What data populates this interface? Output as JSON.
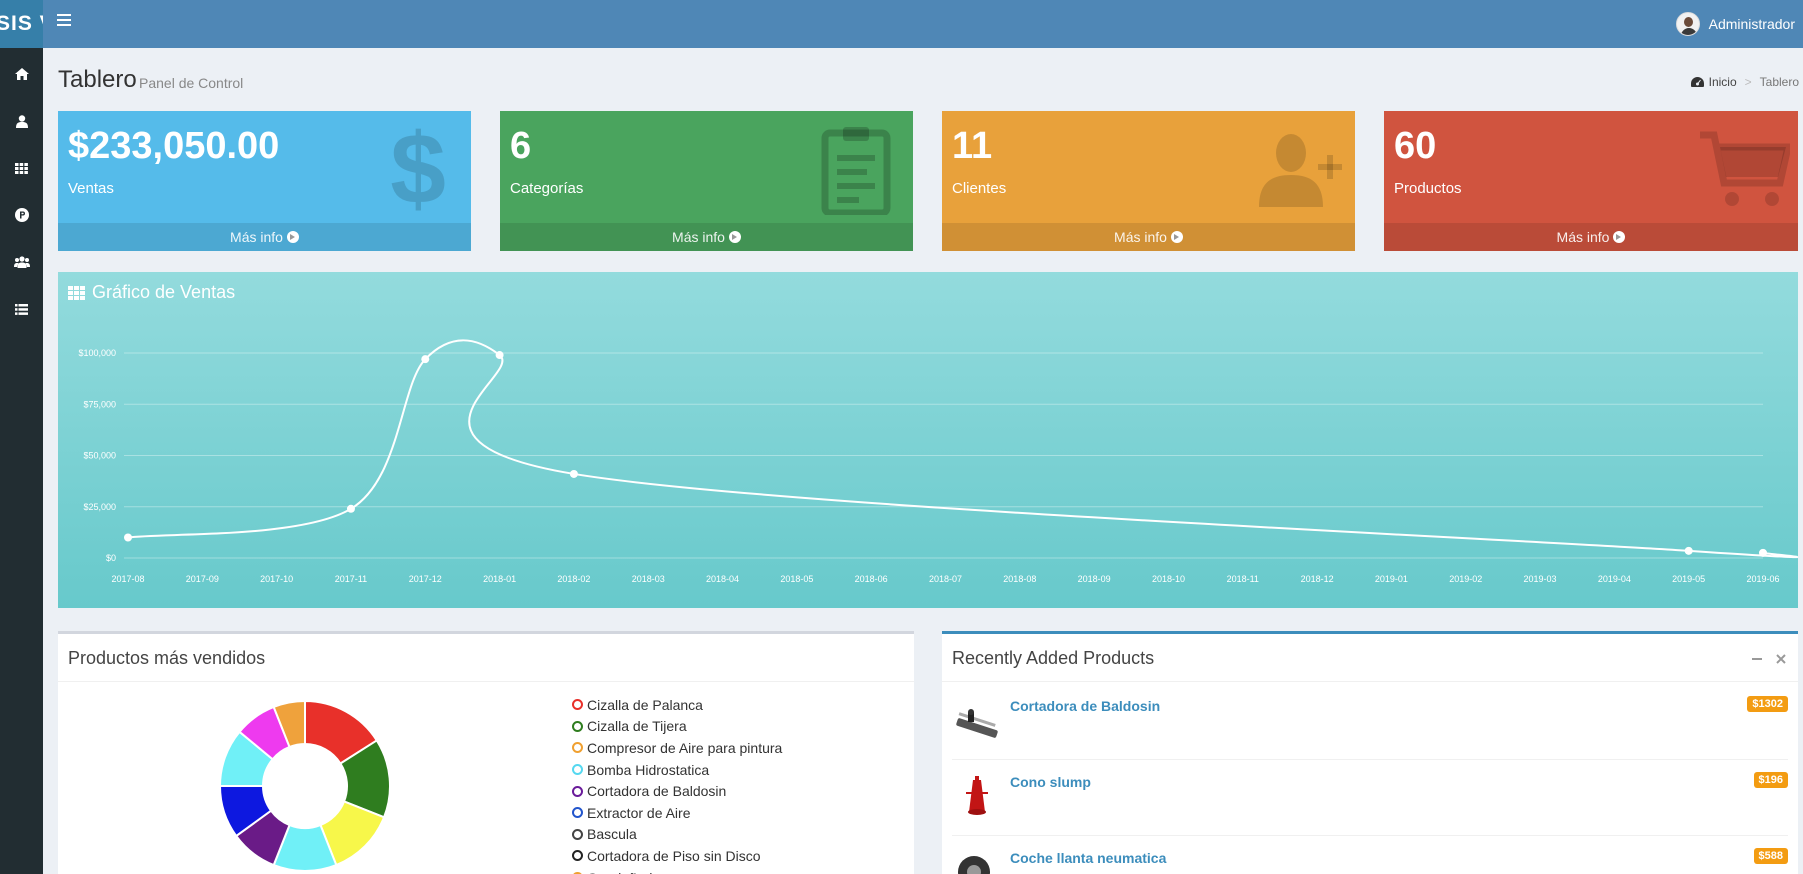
{
  "app": {
    "logo_text": "SIS V"
  },
  "header": {
    "user_name": "Administrador"
  },
  "sidebar": {
    "icons": [
      "home-icon",
      "user-icon",
      "grid-icon",
      "p-circle-icon",
      "users-icon",
      "list-icon"
    ]
  },
  "page": {
    "title": "Tablero",
    "subtitle": "Panel de Control",
    "breadcrumb": {
      "home": "Inicio",
      "current": "Tablero"
    }
  },
  "stats": [
    {
      "value": "$233,050.00",
      "label": "Ventas",
      "link": "Más info",
      "color": "#55bbea",
      "icon": "dollar-icon"
    },
    {
      "value": "6",
      "label": "Categorías",
      "link": "Más info",
      "color": "#4aa45e",
      "icon": "clipboard-icon"
    },
    {
      "value": "11",
      "label": "Clientes",
      "link": "Más info",
      "color": "#e8a13b",
      "icon": "user-add-icon"
    },
    {
      "value": "60",
      "label": "Productos",
      "link": "Más info",
      "color": "#d0543f",
      "icon": "cart-icon"
    }
  ],
  "sales_chart": {
    "title": "Gráfico de Ventas"
  },
  "chart_data": {
    "type": "line",
    "x": [
      "2017-08",
      "2017-09",
      "2017-10",
      "2017-11",
      "2017-12",
      "2018-01",
      "2018-02",
      "2018-03",
      "2018-04",
      "2018-05",
      "2018-06",
      "2018-07",
      "2018-08",
      "2018-09",
      "2018-10",
      "2018-11",
      "2018-12",
      "2019-01",
      "2019-02",
      "2019-03",
      "2019-04",
      "2019-05",
      "2019-06"
    ],
    "points": [
      {
        "x": "2017-08",
        "y": 10000
      },
      {
        "x": "2017-11",
        "y": 24000
      },
      {
        "x": "2017-12",
        "y": 97000
      },
      {
        "x": "2018-01",
        "y": 99000
      },
      {
        "x": "2018-02",
        "y": 41000
      },
      {
        "x": "2019-05",
        "y": 3500
      },
      {
        "x": "2019-06",
        "y": 2500
      }
    ],
    "yticks": [
      "$0",
      "$25,000",
      "$50,000",
      "$75,000",
      "$100,000"
    ],
    "ylim": [
      0,
      100000
    ],
    "grid": true,
    "title": "Gráfico de Ventas"
  },
  "top_products": {
    "title": "Productos más vendidos",
    "items": [
      {
        "label": "Cizalla de Palanca",
        "color": "#e8302a"
      },
      {
        "label": "Cizalla de Tijera",
        "color": "#2f7d1f"
      },
      {
        "label": "Compresor de Aire para pintura",
        "color": "#f0a030"
      },
      {
        "label": "Bomba Hidrostatica",
        "color": "#55d8f0"
      },
      {
        "label": "Cortadora de Baldosin",
        "color": "#6a1b9a"
      },
      {
        "label": "Extractor de Aire",
        "color": "#2255cc"
      },
      {
        "label": "Bascula",
        "color": "#444444"
      },
      {
        "label": "Cortadora de Piso sin Disco",
        "color": "#222222"
      },
      {
        "label": "Guadañadora",
        "color": "#f0a030"
      }
    ],
    "donut_values": [
      16,
      15,
      13,
      12,
      9,
      10,
      11,
      8,
      6
    ],
    "donut_colors": [
      "#e8302a",
      "#2f7d1f",
      "#f7f74a",
      "#70f0f7",
      "#6a1b87",
      "#0d18e0",
      "#70f0f7",
      "#ee3aef",
      "#efa23c",
      "#f5cd3a"
    ]
  },
  "recent_products": {
    "title": "Recently Added Products",
    "items": [
      {
        "name": "Cortadora de Baldosin",
        "price": "$1302"
      },
      {
        "name": "Cono slump",
        "price": "$196"
      },
      {
        "name": "Coche llanta neumatica",
        "price": "$588"
      }
    ]
  }
}
